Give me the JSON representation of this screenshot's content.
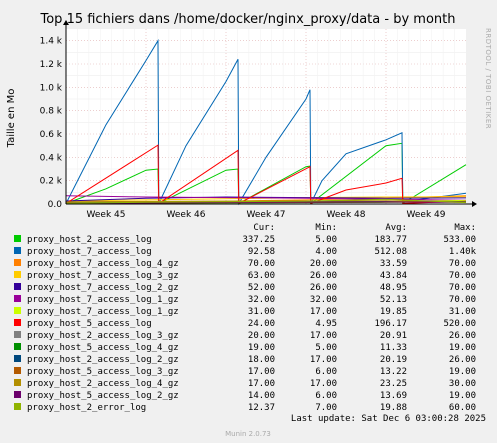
{
  "chart_data": {
    "type": "line",
    "title": "Top 15 fichiers dans /home/docker/nginx_proxy/data - by month",
    "ylabel": "Taille en Mo",
    "side_label": "RRDTOOL / TOBI OETIKER",
    "x_domain": [
      0,
      5
    ],
    "ylim": [
      0,
      1500
    ],
    "y_ticks": [
      0,
      200,
      400,
      600,
      800,
      1000,
      1200,
      1400
    ],
    "y_tick_labels": [
      "0.0",
      "0.2 k",
      "0.4 k",
      "0.6 k",
      "0.8 k",
      "1.0 k",
      "1.2 k",
      "1.4 k"
    ],
    "x_ticks": [
      0.5,
      1.5,
      2.5,
      3.5,
      4.5
    ],
    "x_tick_labels": [
      "Week 45",
      "Week 46",
      "Week 47",
      "Week 48",
      "Week 49"
    ],
    "grid": true,
    "legend_columns": [
      "Cur:",
      "Min:",
      "Avg:",
      "Max:"
    ],
    "series": [
      {
        "name": "proxy_host_2_access_log",
        "color": "#00cc00",
        "cur": "337.25",
        "min": "5.00",
        "avg": "183.77",
        "max": "533.00",
        "points": [
          [
            0,
            5
          ],
          [
            0.5,
            130
          ],
          [
            1,
            290
          ],
          [
            1.15,
            300
          ],
          [
            1.16,
            5
          ],
          [
            2,
            290
          ],
          [
            2.15,
            300
          ],
          [
            2.16,
            5
          ],
          [
            3,
            320
          ],
          [
            3.05,
            325
          ],
          [
            3.06,
            5
          ],
          [
            4,
            500
          ],
          [
            4.2,
            520
          ],
          [
            4.21,
            5
          ],
          [
            5,
            337
          ]
        ]
      },
      {
        "name": "proxy_host_7_access_log",
        "color": "#0066b3",
        "cur": "92.58",
        "min": "4.00",
        "avg": "512.08",
        "max": "1.40k",
        "points": [
          [
            0,
            4
          ],
          [
            0.5,
            680
          ],
          [
            1,
            1230
          ],
          [
            1.15,
            1400
          ],
          [
            1.16,
            4
          ],
          [
            1.5,
            500
          ],
          [
            2,
            1050
          ],
          [
            2.15,
            1240
          ],
          [
            2.16,
            4
          ],
          [
            2.5,
            400
          ],
          [
            3,
            900
          ],
          [
            3.05,
            980
          ],
          [
            3.06,
            4
          ],
          [
            3.2,
            200
          ],
          [
            3.5,
            430
          ],
          [
            4,
            550
          ],
          [
            4.2,
            610
          ],
          [
            4.21,
            20
          ],
          [
            5,
            92
          ]
        ]
      },
      {
        "name": "proxy_host_7_access_log_4_gz",
        "color": "#ff8000",
        "cur": "70.00",
        "min": "20.00",
        "avg": "33.59",
        "max": "70.00",
        "points": [
          [
            0,
            20
          ],
          [
            1,
            22
          ],
          [
            2,
            25
          ],
          [
            3,
            35
          ],
          [
            4,
            50
          ],
          [
            5,
            70
          ]
        ]
      },
      {
        "name": "proxy_host_7_access_log_3_gz",
        "color": "#ffcc00",
        "cur": "63.00",
        "min": "26.00",
        "avg": "43.84",
        "max": "70.00",
        "points": [
          [
            0,
            26
          ],
          [
            1,
            35
          ],
          [
            2,
            45
          ],
          [
            3,
            55
          ],
          [
            4,
            60
          ],
          [
            5,
            63
          ]
        ]
      },
      {
        "name": "proxy_host_7_access_log_2_gz",
        "color": "#330099",
        "cur": "52.00",
        "min": "26.00",
        "avg": "48.95",
        "max": "70.00",
        "points": [
          [
            0,
            26
          ],
          [
            1,
            50
          ],
          [
            2,
            60
          ],
          [
            3,
            55
          ],
          [
            4,
            50
          ],
          [
            5,
            52
          ]
        ]
      },
      {
        "name": "proxy_host_7_access_log_1_gz",
        "color": "#990099",
        "cur": "32.00",
        "min": "32.00",
        "avg": "52.13",
        "max": "70.00",
        "points": [
          [
            0,
            70
          ],
          [
            1,
            60
          ],
          [
            2,
            55
          ],
          [
            3,
            50
          ],
          [
            4,
            40
          ],
          [
            5,
            32
          ]
        ]
      },
      {
        "name": "proxy_host_7_access_log_1_gz",
        "color": "#ccff00",
        "cur": "31.00",
        "min": "17.00",
        "avg": "19.85",
        "max": "31.00",
        "points": [
          [
            0,
            17
          ],
          [
            2,
            18
          ],
          [
            4,
            20
          ],
          [
            5,
            31
          ]
        ]
      },
      {
        "name": "proxy_host_5_access_log",
        "color": "#ff0000",
        "cur": "24.00",
        "min": "4.95",
        "avg": "196.17",
        "max": "520.00",
        "points": [
          [
            0,
            5
          ],
          [
            1.15,
            505
          ],
          [
            1.16,
            5
          ],
          [
            2.15,
            460
          ],
          [
            2.16,
            5
          ],
          [
            3.05,
            320
          ],
          [
            3.06,
            5
          ],
          [
            3.5,
            120
          ],
          [
            4,
            180
          ],
          [
            4.2,
            220
          ],
          [
            4.21,
            5
          ],
          [
            5,
            24
          ]
        ]
      },
      {
        "name": "proxy_host_2_access_log_3_gz",
        "color": "#808080",
        "cur": "20.00",
        "min": "17.00",
        "avg": "20.91",
        "max": "26.00",
        "points": [
          [
            0,
            17
          ],
          [
            2,
            20
          ],
          [
            4,
            22
          ],
          [
            5,
            20
          ]
        ]
      },
      {
        "name": "proxy_host_5_access_log_4_gz",
        "color": "#008f00",
        "cur": "19.00",
        "min": "5.00",
        "avg": "11.33",
        "max": "19.00",
        "points": [
          [
            0,
            5
          ],
          [
            2,
            10
          ],
          [
            4,
            15
          ],
          [
            5,
            19
          ]
        ]
      },
      {
        "name": "proxy_host_2_access_log_2_gz",
        "color": "#00487d",
        "cur": "18.00",
        "min": "17.00",
        "avg": "20.19",
        "max": "26.00",
        "points": [
          [
            0,
            17
          ],
          [
            2,
            20
          ],
          [
            4,
            22
          ],
          [
            5,
            18
          ]
        ]
      },
      {
        "name": "proxy_host_5_access_log_3_gz",
        "color": "#b35a00",
        "cur": "17.00",
        "min": "6.00",
        "avg": "13.22",
        "max": "19.00",
        "points": [
          [
            0,
            6
          ],
          [
            2,
            12
          ],
          [
            4,
            16
          ],
          [
            5,
            17
          ]
        ]
      },
      {
        "name": "proxy_host_2_access_log_4_gz",
        "color": "#b38f00",
        "cur": "17.00",
        "min": "17.00",
        "avg": "23.25",
        "max": "30.00",
        "points": [
          [
            0,
            17
          ],
          [
            2,
            25
          ],
          [
            4,
            28
          ],
          [
            5,
            17
          ]
        ]
      },
      {
        "name": "proxy_host_5_access_log_2_gz",
        "color": "#6b006b",
        "cur": "14.00",
        "min": "6.00",
        "avg": "13.69",
        "max": "19.00",
        "points": [
          [
            0,
            6
          ],
          [
            2,
            14
          ],
          [
            4,
            18
          ],
          [
            5,
            14
          ]
        ]
      },
      {
        "name": "proxy_host_2_error_log",
        "color": "#8fb300",
        "cur": "12.37",
        "min": "7.00",
        "avg": "19.88",
        "max": "60.00",
        "points": [
          [
            0,
            7
          ],
          [
            1,
            15
          ],
          [
            2,
            20
          ],
          [
            3,
            25
          ],
          [
            4,
            40
          ],
          [
            5,
            12
          ]
        ]
      }
    ]
  },
  "footer": {
    "last_update": "Last update: Sat Dec  6 03:00:28 2025",
    "munin_version": "Munin 2.0.73"
  }
}
